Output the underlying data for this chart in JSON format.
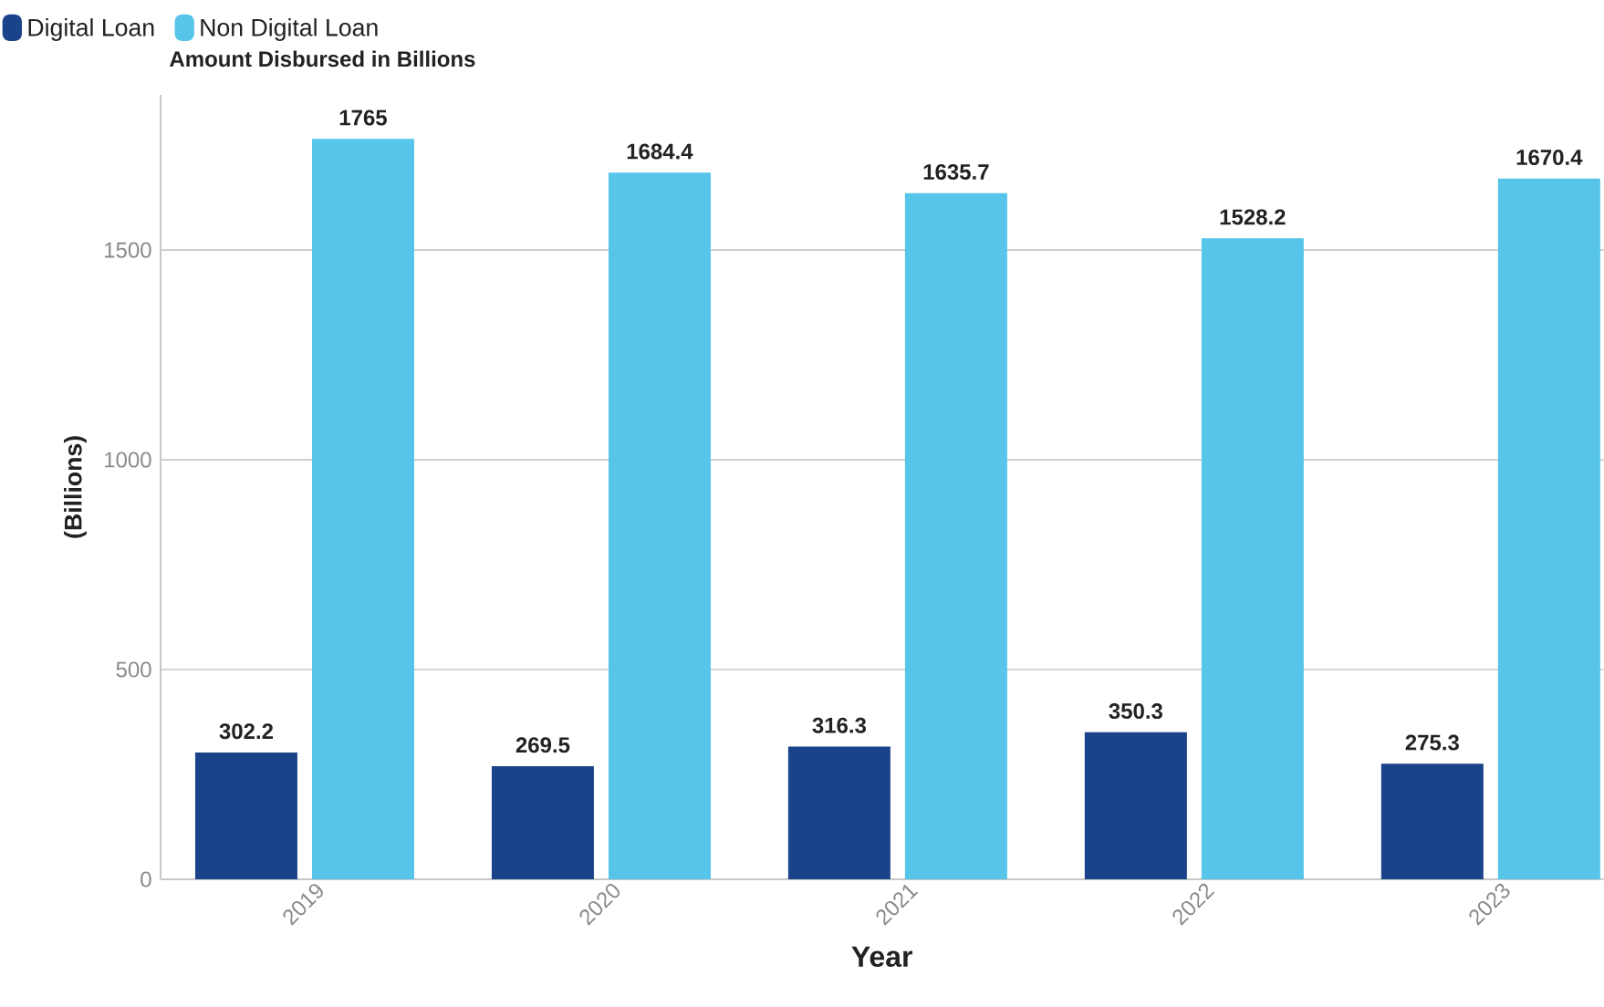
{
  "chart_data": {
    "type": "bar",
    "title": "Amount Disbursed in Billions",
    "xlabel": "Year",
    "ylabel": "(Billions)",
    "categories": [
      "2019",
      "2020",
      "2021",
      "2022",
      "2023"
    ],
    "series": [
      {
        "name": "Digital Loan",
        "color": "#1b4389",
        "values": [
          302.2,
          269.5,
          316.3,
          350.3,
          275.3
        ]
      },
      {
        "name": "Non Digital Loan",
        "color": "#57c5ea",
        "values": [
          1765,
          1684.4,
          1635.7,
          1528.2,
          1670.4
        ]
      }
    ],
    "ylim": [
      0,
      1870
    ],
    "yticks": [
      0,
      500,
      1000,
      1500
    ],
    "grid": "y",
    "legend": "top left",
    "data_labels": true
  }
}
